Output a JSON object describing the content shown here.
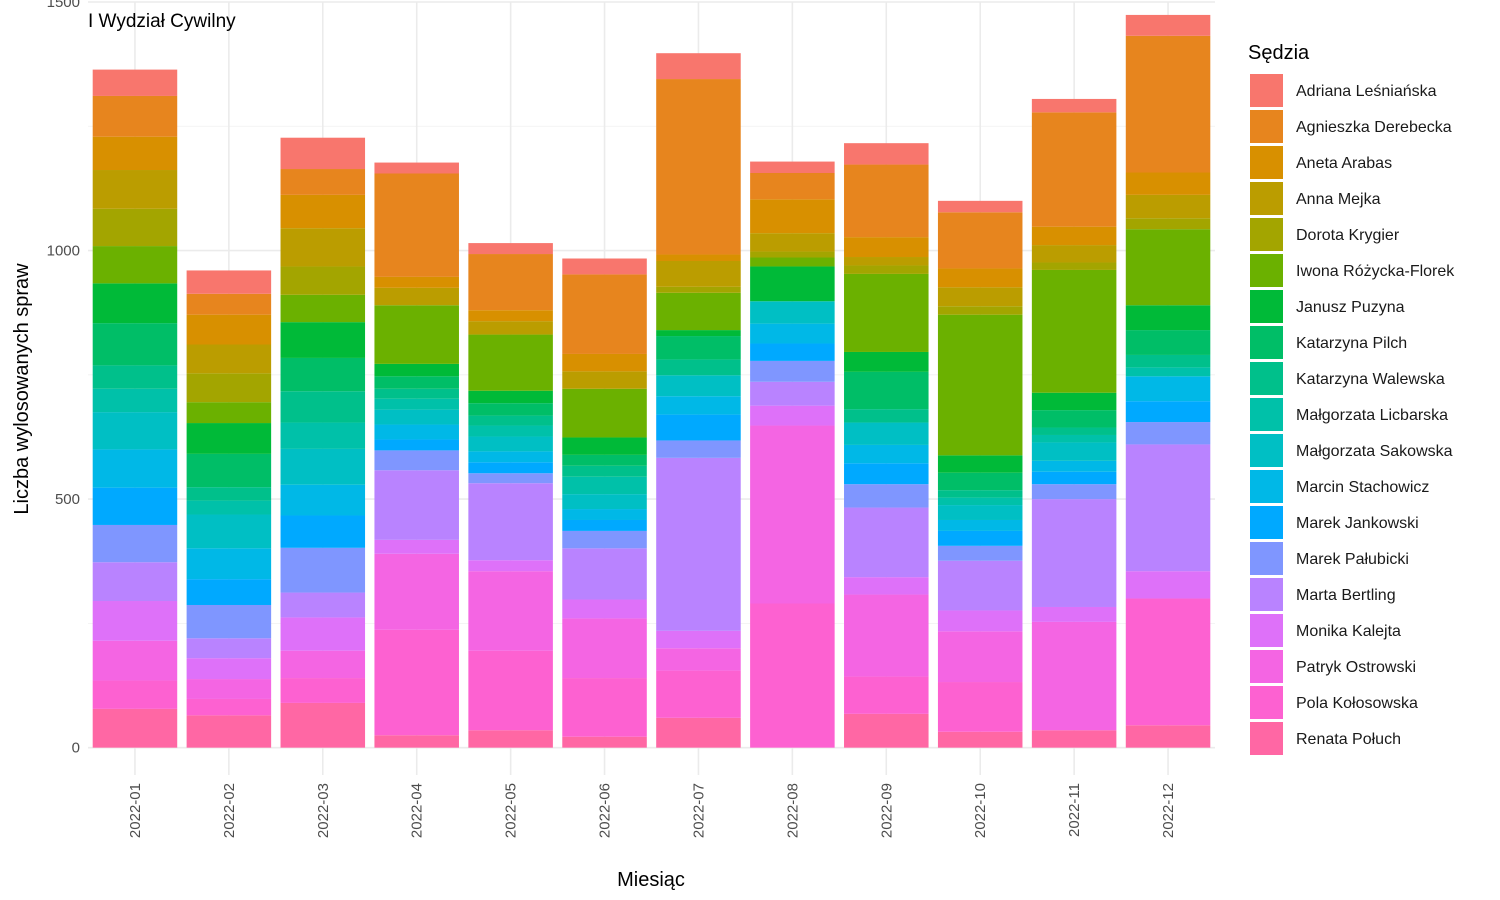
{
  "chart_data": {
    "type": "bar",
    "stacked": true,
    "title": "I Wydział Cywilny",
    "xlabel": "Miesiąc",
    "ylabel": "Liczba wylosowanych spraw",
    "ylim": [
      -55,
      1500
    ],
    "yticks": [
      0,
      500,
      1000,
      1500
    ],
    "grid": true,
    "legend_title": "Sędzia",
    "legend_position": "right",
    "categories": [
      "2022-01",
      "2022-02",
      "2022-03",
      "2022-04",
      "2022-05",
      "2022-06",
      "2022-07",
      "2022-08",
      "2022-09",
      "2022-10",
      "2022-11",
      "2022-12"
    ],
    "series": [
      {
        "name": "Adriana Leśniańska",
        "color": "#F8766D",
        "values": [
          53,
          47,
          63,
          22,
          22,
          32,
          52,
          23,
          43,
          23,
          27,
          42
        ]
      },
      {
        "name": "Agnieszka Derebecka",
        "color": "#E7851E",
        "values": [
          82,
          42,
          52,
          208,
          113,
          160,
          353,
          53,
          146,
          113,
          230,
          275
        ]
      },
      {
        "name": "Aneta Arabas",
        "color": "#D89000",
        "values": [
          67,
          60,
          67,
          22,
          22,
          35,
          13,
          68,
          40,
          38,
          37,
          45
        ]
      },
      {
        "name": "Anna Mejka",
        "color": "#BB9D00",
        "values": [
          78,
          58,
          77,
          35,
          27,
          35,
          52,
          37,
          17,
          38,
          35,
          47
        ]
      },
      {
        "name": "Dorota Krygier",
        "color": "#A3A500",
        "values": [
          75,
          58,
          57,
          0,
          0,
          0,
          12,
          12,
          17,
          17,
          15,
          22
        ]
      },
      {
        "name": "Iwona Różycka-Florek",
        "color": "#6BB100",
        "values": [
          75,
          42,
          55,
          118,
          113,
          98,
          75,
          18,
          157,
          283,
          247,
          153
        ]
      },
      {
        "name": "Janusz Puzyna",
        "color": "#00BA38",
        "values": [
          80,
          62,
          72,
          25,
          25,
          35,
          12,
          70,
          40,
          35,
          35,
          50
        ]
      },
      {
        "name": "Katarzyna Pilch",
        "color": "#00BE67",
        "values": [
          85,
          67,
          67,
          25,
          25,
          22,
          47,
          0,
          75,
          35,
          35,
          50
        ]
      },
      {
        "name": "Katarzyna Walewska",
        "color": "#00C08B",
        "values": [
          47,
          27,
          63,
          20,
          20,
          22,
          32,
          0,
          27,
          15,
          15,
          25
        ]
      },
      {
        "name": "Małgorzata Licbarska",
        "color": "#00C1A9",
        "values": [
          47,
          28,
          53,
          22,
          22,
          35,
          0,
          0,
          0,
          15,
          15,
          18
        ]
      },
      {
        "name": "Małgorzata Sakowska",
        "color": "#00BFC4",
        "values": [
          75,
          68,
          72,
          30,
          30,
          30,
          42,
          45,
          45,
          30,
          37,
          0
        ]
      },
      {
        "name": "Marcin Stachowicz",
        "color": "#00B8E7",
        "values": [
          77,
          62,
          62,
          30,
          22,
          22,
          37,
          40,
          37,
          22,
          22,
          50
        ]
      },
      {
        "name": "Marek Jankowski",
        "color": "#00A9FF",
        "values": [
          75,
          52,
          65,
          22,
          22,
          22,
          52,
          35,
          42,
          30,
          25,
          42
        ]
      },
      {
        "name": "Marek Pałubicki",
        "color": "#7F96FF",
        "values": [
          75,
          67,
          90,
          40,
          20,
          35,
          35,
          42,
          47,
          30,
          30,
          45
        ]
      },
      {
        "name": "Marta Bertling",
        "color": "#B983FF",
        "values": [
          78,
          40,
          50,
          140,
          155,
          103,
          348,
          48,
          140,
          100,
          217,
          255
        ]
      },
      {
        "name": "Monika Kalejta",
        "color": "#DE71F9",
        "values": [
          80,
          42,
          67,
          28,
          22,
          38,
          35,
          40,
          35,
          42,
          30,
          55
        ]
      },
      {
        "name": "Patryk Ostrowski",
        "color": "#F465E3",
        "values": [
          80,
          40,
          55,
          153,
          160,
          120,
          45,
          358,
          165,
          102,
          218,
          0
        ]
      },
      {
        "name": "Pola Kołosowska",
        "color": "#FD61D1",
        "values": [
          57,
          33,
          50,
          212,
          160,
          118,
          95,
          290,
          75,
          100,
          0,
          255
        ]
      },
      {
        "name": "Renata Połuch",
        "color": "#FF67A4",
        "values": [
          78,
          65,
          90,
          25,
          35,
          22,
          60,
          0,
          68,
          32,
          35,
          45
        ]
      }
    ]
  }
}
